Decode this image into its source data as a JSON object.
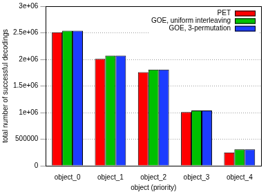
{
  "chart_data": {
    "type": "bar",
    "categories": [
      "object_0",
      "object_1",
      "object_2",
      "object_3",
      "object_4"
    ],
    "x_label": "object (priority)",
    "y_label": "total number of successful decodings",
    "series": [
      {
        "name": "PET",
        "color": "#ff0000",
        "values": [
          2510000,
          2010000,
          1760000,
          1010000,
          250000
        ]
      },
      {
        "name": "GOE, uniform interleaving",
        "color": "#00c000",
        "values": [
          2540000,
          2070000,
          1810000,
          1040000,
          310000
        ]
      },
      {
        "name": "GOE, 3-permutation",
        "color": "#1c3cff",
        "values": [
          2540000,
          2070000,
          1810000,
          1040000,
          310000
        ]
      }
    ],
    "ylim": [
      0,
      3000000
    ],
    "yticks": [
      0,
      500000,
      {
        "value": 1000000,
        "label": "1e+06"
      },
      {
        "value": 1500000,
        "label": "1.5e+06"
      },
      {
        "value": 2000000,
        "label": "2e+06"
      },
      {
        "value": 2500000,
        "label": "2.5e+06"
      },
      {
        "value": 3000000,
        "label": "3e+06"
      }
    ],
    "grid": true,
    "legend": "top-right"
  }
}
